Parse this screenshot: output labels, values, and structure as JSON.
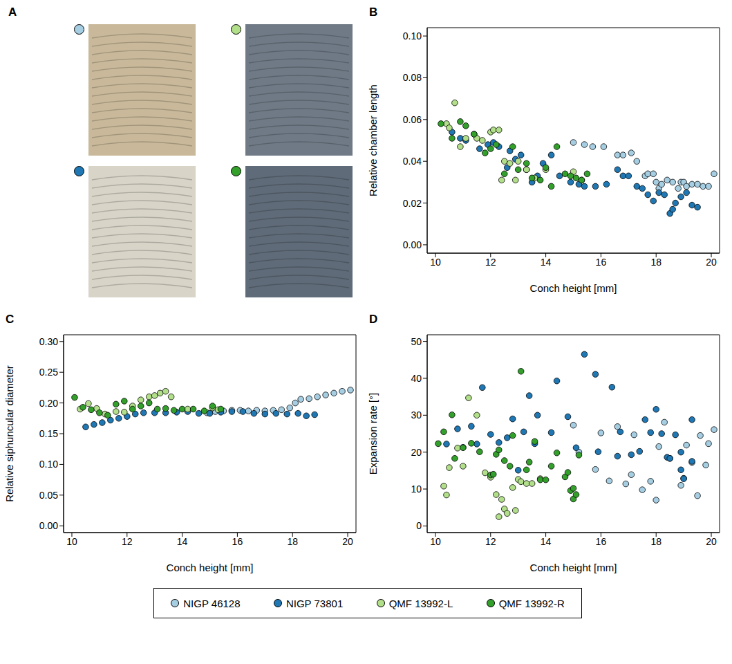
{
  "legend": "bottom",
  "panel_a": {
    "label": "A",
    "images": [
      "NIGP 46128",
      "QMF 13992-L",
      "NIGP 73801",
      "QMF 13992-R"
    ]
  },
  "chart_data": [
    {
      "type": "scatter",
      "panel": "B",
      "x_label": "Conch height [mm]",
      "y_label": "Relative chamber length",
      "xlim": [
        9.7,
        20.3
      ],
      "xticks": [
        10,
        12,
        14,
        16,
        18,
        20
      ],
      "ylim": [
        -0.004,
        0.104
      ],
      "yticks": [
        {
          "value": 0,
          "label": "0.00"
        },
        {
          "value": 0.02,
          "label": "0.02"
        },
        {
          "value": 0.04,
          "label": "0.04"
        },
        {
          "value": 0.06,
          "label": "0.06"
        },
        {
          "value": 0.08,
          "label": "0.08"
        },
        {
          "value": 0.1,
          "label": "0.10"
        }
      ],
      "series": [
        {
          "name": "NIGP 46128",
          "color": "#a6cee3",
          "x": [
            15.0,
            15.4,
            15.7,
            16.1,
            16.6,
            16.8,
            17.1,
            17.3,
            17.6,
            17.7,
            17.9,
            18.0,
            18.1,
            18.2,
            18.4,
            18.6,
            18.8,
            18.9,
            19.0,
            19.1,
            19.3,
            19.5,
            19.7,
            19.9,
            20.1
          ],
          "values": [
            0.049,
            0.048,
            0.047,
            0.047,
            0.043,
            0.043,
            0.044,
            0.04,
            0.033,
            0.034,
            0.034,
            0.03,
            0.027,
            0.029,
            0.031,
            0.03,
            0.027,
            0.03,
            0.03,
            0.028,
            0.029,
            0.029,
            0.028,
            0.028,
            0.034
          ]
        },
        {
          "name": "NIGP 73801",
          "color": "#1f78b4",
          "x": [
            10.6,
            10.9,
            11.1,
            11.4,
            11.6,
            11.9,
            12.1,
            12.3,
            12.6,
            12.7,
            12.9,
            13.1,
            13.3,
            13.5,
            13.7,
            13.9,
            14.2,
            14.5,
            14.9,
            15.2,
            15.4,
            15.8,
            16.2,
            16.6,
            16.8,
            17.0,
            17.3,
            17.5,
            17.7,
            17.9,
            18.1,
            18.3,
            18.5,
            18.6,
            18.7,
            18.9,
            19.1,
            19.3,
            19.5
          ],
          "values": [
            0.054,
            0.051,
            0.05,
            0.053,
            0.046,
            0.048,
            0.049,
            0.047,
            0.037,
            0.045,
            0.041,
            0.043,
            0.036,
            0.03,
            0.033,
            0.039,
            0.043,
            0.033,
            0.03,
            0.029,
            0.028,
            0.028,
            0.029,
            0.036,
            0.033,
            0.033,
            0.028,
            0.027,
            0.024,
            0.021,
            0.025,
            0.024,
            0.015,
            0.017,
            0.02,
            0.023,
            0.025,
            0.019,
            0.018
          ]
        },
        {
          "name": "QMF 13992-L",
          "color": "#b2df8a",
          "x": [
            10.4,
            10.5,
            10.7,
            10.9,
            11.1,
            11.5,
            11.7,
            12.0,
            12.1,
            12.3,
            12.4,
            12.5,
            12.7,
            12.9,
            13.0,
            13.3,
            13.6,
            14.0,
            15.0,
            15.3
          ],
          "values": [
            0.058,
            0.056,
            0.068,
            0.047,
            0.051,
            0.051,
            0.05,
            0.054,
            0.055,
            0.055,
            0.031,
            0.04,
            0.039,
            0.031,
            0.04,
            0.036,
            0.032,
            0.036,
            0.035,
            0.031
          ]
        },
        {
          "name": "QMF 13992-R",
          "color": "#33a02c",
          "x": [
            10.2,
            10.6,
            10.9,
            11.1,
            11.4,
            11.8,
            12.0,
            12.2,
            12.5,
            12.8,
            13.0,
            13.3,
            13.5,
            13.8,
            14.0,
            14.2,
            14.4,
            14.7,
            14.9,
            15.1,
            15.3,
            15.5
          ],
          "values": [
            0.058,
            0.051,
            0.059,
            0.057,
            0.053,
            0.044,
            0.046,
            0.048,
            0.034,
            0.047,
            0.036,
            0.039,
            0.032,
            0.031,
            0.037,
            0.028,
            0.047,
            0.034,
            0.033,
            0.032,
            0.031,
            0.034
          ]
        }
      ]
    },
    {
      "type": "scatter",
      "panel": "C",
      "x_label": "Conch height [mm]",
      "y_label": "Relative siphuncular diameter",
      "xlim": [
        9.7,
        20.3
      ],
      "xticks": [
        10,
        12,
        14,
        16,
        18,
        20
      ],
      "ylim": [
        -0.011,
        0.311
      ],
      "yticks": [
        {
          "value": 0,
          "label": "0.00"
        },
        {
          "value": 0.05,
          "label": "0.05"
        },
        {
          "value": 0.1,
          "label": "0.10"
        },
        {
          "value": 0.15,
          "label": "0.15"
        },
        {
          "value": 0.2,
          "label": "0.20"
        },
        {
          "value": 0.25,
          "label": "0.25"
        },
        {
          "value": 0.3,
          "label": "0.30"
        }
      ],
      "series": [
        {
          "name": "NIGP 46128",
          "color": "#a6cee3",
          "x": [
            14.9,
            15.2,
            15.5,
            15.8,
            16.1,
            16.4,
            16.7,
            17.0,
            17.3,
            17.6,
            17.9,
            18.1,
            18.3,
            18.6,
            18.9,
            19.2,
            19.5,
            19.8,
            20.1
          ],
          "values": [
            0.184,
            0.186,
            0.187,
            0.188,
            0.188,
            0.187,
            0.188,
            0.187,
            0.188,
            0.189,
            0.192,
            0.2,
            0.206,
            0.207,
            0.21,
            0.213,
            0.216,
            0.219,
            0.221
          ]
        },
        {
          "name": "NIGP 73801",
          "color": "#1f78b4",
          "x": [
            10.5,
            10.8,
            11.1,
            11.4,
            11.7,
            12.0,
            12.3,
            12.6,
            13.0,
            13.4,
            13.8,
            14.2,
            14.6,
            15.0,
            15.4,
            15.8,
            16.2,
            16.6,
            17.0,
            17.4,
            17.8,
            18.2,
            18.5,
            18.8
          ],
          "values": [
            0.161,
            0.165,
            0.168,
            0.172,
            0.175,
            0.178,
            0.182,
            0.184,
            0.184,
            0.184,
            0.185,
            0.186,
            0.183,
            0.183,
            0.185,
            0.186,
            0.186,
            0.183,
            0.182,
            0.183,
            0.182,
            0.183,
            0.179,
            0.181
          ]
        },
        {
          "name": "QMF 13992-L",
          "color": "#b2df8a",
          "x": [
            10.3,
            10.6,
            10.9,
            11.2,
            11.6,
            11.9,
            12.2,
            12.5,
            12.8,
            13.0,
            13.2,
            13.4,
            13.6,
            14.2,
            15.1,
            15.3
          ],
          "values": [
            0.19,
            0.199,
            0.191,
            0.182,
            0.186,
            0.185,
            0.195,
            0.205,
            0.21,
            0.212,
            0.216,
            0.219,
            0.21,
            0.19,
            0.192,
            0.189
          ]
        },
        {
          "name": "QMF 13992-R",
          "color": "#33a02c",
          "x": [
            10.1,
            10.4,
            10.7,
            11.0,
            11.3,
            11.6,
            11.9,
            12.2,
            12.5,
            12.8,
            13.1,
            13.4,
            13.7,
            14.0,
            14.4,
            14.8,
            15.1,
            15.4
          ],
          "values": [
            0.209,
            0.193,
            0.189,
            0.184,
            0.18,
            0.198,
            0.203,
            0.19,
            0.195,
            0.2,
            0.19,
            0.191,
            0.188,
            0.19,
            0.19,
            0.187,
            0.195,
            0.19
          ]
        }
      ]
    },
    {
      "type": "scatter",
      "panel": "D",
      "x_label": "Conch height [mm]",
      "y_label": "Expansion rate [°]",
      "xlim": [
        9.7,
        20.3
      ],
      "xticks": [
        10,
        12,
        14,
        16,
        18,
        20
      ],
      "ylim": [
        -1.8,
        51.8
      ],
      "yticks": [
        0,
        10,
        20,
        30,
        40,
        50
      ],
      "series": [
        {
          "name": "NIGP 46128",
          "color": "#a6cee3",
          "x": [
            15.0,
            15.2,
            15.8,
            16.0,
            16.3,
            16.6,
            16.9,
            17.1,
            17.2,
            17.5,
            17.8,
            18.0,
            18.1,
            18.3,
            18.5,
            18.9,
            19.0,
            19.1,
            19.3,
            19.5,
            19.6,
            19.8,
            19.9,
            20.1
          ],
          "values": [
            27.3,
            20,
            15.3,
            25.2,
            12.2,
            26.9,
            11.4,
            13.9,
            24.7,
            9.8,
            12.1,
            7.0,
            21.5,
            28.1,
            18.3,
            11,
            12.9,
            21.9,
            17.2,
            8.2,
            24.5,
            16.5,
            22.3,
            26.1
          ]
        },
        {
          "name": "NIGP 73801",
          "color": "#1f78b4",
          "x": [
            10.4,
            10.8,
            11.0,
            11.3,
            11.5,
            11.7,
            12.0,
            12.3,
            12.6,
            12.8,
            13.0,
            13.2,
            13.4,
            13.6,
            13.7,
            14.2,
            14.4,
            14.8,
            15.1,
            15.4,
            15.8,
            15.9,
            16.4,
            16.6,
            16.7,
            17.1,
            17.4,
            17.6,
            17.8,
            18.0,
            18.2,
            18.4,
            18.5,
            18.7,
            18.9,
            18.9,
            19.0,
            19.3,
            19.3
          ],
          "values": [
            22.2,
            26.3,
            21.3,
            27.0,
            22.2,
            37.5,
            24.8,
            22.6,
            23.9,
            29,
            15.1,
            25.5,
            35.3,
            22.3,
            30,
            25.3,
            39.3,
            29.6,
            21.2,
            46.5,
            41.1,
            20.1,
            37.6,
            18.9,
            25.5,
            19.3,
            20.2,
            28.8,
            25.3,
            31.6,
            25,
            18.6,
            18.3,
            24.7,
            15.2,
            20,
            12.8,
            28.8,
            17.5
          ]
        },
        {
          "name": "QMF 13992-L",
          "color": "#b2df8a",
          "x": [
            10.3,
            10.4,
            10.5,
            10.8,
            11.0,
            11.2,
            11.5,
            11.8,
            12.0,
            12.2,
            12.3,
            12.4,
            12.5,
            12.6,
            12.8,
            12.9,
            13.0,
            13.1,
            13.3,
            13.5,
            13.8
          ],
          "values": [
            10.8,
            8.4,
            15.8,
            21.1,
            16.2,
            34.7,
            30.0,
            14.4,
            13.2,
            8.5,
            2.5,
            7.2,
            4.6,
            3.4,
            10.4,
            4.2,
            12.6,
            12.0,
            11.5,
            11.5,
            12.8
          ]
        },
        {
          "name": "QMF 13992-R",
          "color": "#33a02c",
          "x": [
            10.1,
            10.3,
            10.6,
            10.7,
            11.0,
            11.3,
            11.6,
            12.0,
            12.1,
            12.2,
            12.3,
            12.5,
            12.7,
            12.8,
            13.1,
            13.3,
            13.4,
            13.6,
            13.8,
            14.0,
            14.2,
            14.4,
            14.7,
            14.8,
            14.9,
            15.0,
            15.0,
            15.1,
            15.2
          ],
          "values": [
            22.3,
            25.5,
            30.1,
            18.3,
            21.2,
            22.4,
            20.1,
            13.8,
            14,
            19.4,
            20.6,
            17.7,
            16.2,
            24.5,
            41.9,
            15.2,
            17.3,
            22.9,
            12.5,
            12.5,
            16.2,
            19.8,
            13.3,
            14.5,
            9.6,
            7.3,
            10.2,
            8.5,
            19.2
          ]
        }
      ]
    }
  ]
}
